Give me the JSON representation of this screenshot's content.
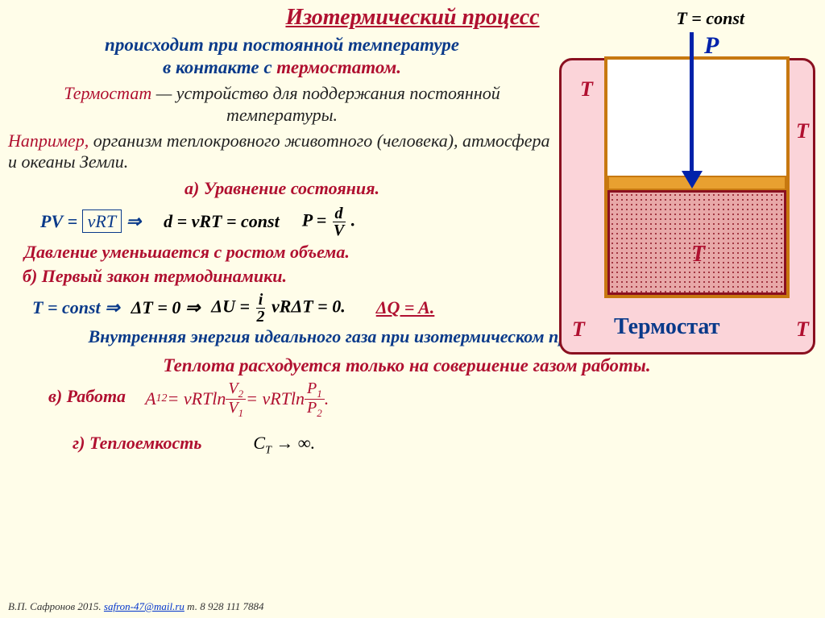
{
  "title": "Изотермический процесс",
  "tconst": "T = const",
  "para1_a": "происходит при постоянной температуре",
  "para1_b": "в контакте с ",
  "para1_c": "термостатом.",
  "para2_a": "Термостат",
  "para2_b": " — устройство для поддержания постоянной температуры.",
  "para3_a": "Например,",
  "para3_b": " организм теплокровного животного (человека), атмосфера и океаны Земли.",
  "section_a": "а) Уравнение состояния.",
  "eq_pv": "PV",
  "eq_eq": " = ",
  "eq_nrt": "νRT",
  "eq_arrow": " ⇒",
  "eq_d": "d = νRT = const",
  "eq_p": "P = ",
  "eq_d2": "d",
  "eq_v": "V",
  "eq_dot": " .",
  "conclusion_a": "Давление уменьшается с ростом объема.",
  "section_b": "б) Первый закон термодинамики.",
  "eq_tc": "T = const",
  "eq_ar2": " ⇒",
  "eq_dt0": "ΔT = 0 ⇒",
  "eq_du": "ΔU = ",
  "eq_i": "i",
  "eq_2": "2",
  "eq_nrdt": " νRΔT = 0.",
  "eq_dq": "ΔQ = A.",
  "internal": "Внутренняя энергия идеального газа при изотермическом процессе не меняется.",
  "heat": "Теплота расходуется только на совершение газом работы.",
  "section_c": "в) Работа",
  "work_a": "A",
  "work_12": "12",
  "work_eq1": " = νRTln ",
  "work_v2": "V",
  "work_2": "2",
  "work_v1": "V",
  "work_1": "1",
  "work_eq2": " = νRTln ",
  "work_p1": "P",
  "work_p1s": "1",
  "work_p2": "P",
  "work_p2s": "2",
  "work_dot": ".",
  "section_d": "г) Теплоемкость",
  "ct": "C",
  "ct_t": "T",
  "ct_inf": " → ∞.",
  "footer_a": "В.П. Сафронов 2015.  ",
  "footer_mail": "safron-47@mail.ru",
  "footer_b": "  т. 8 928 111 7884",
  "diagram": {
    "P": "P",
    "T": "T",
    "thermostat": "Термостат",
    "colors": {
      "bg": "#fffde9",
      "thermostat_fill": "#fbd4d9",
      "thermostat_border": "#8a1020",
      "cylinder_border": "#c77810",
      "piston_fill": "#e8a030",
      "arrow": "#0022aa",
      "red": "#b01030",
      "blue": "#0a3a8a"
    }
  }
}
